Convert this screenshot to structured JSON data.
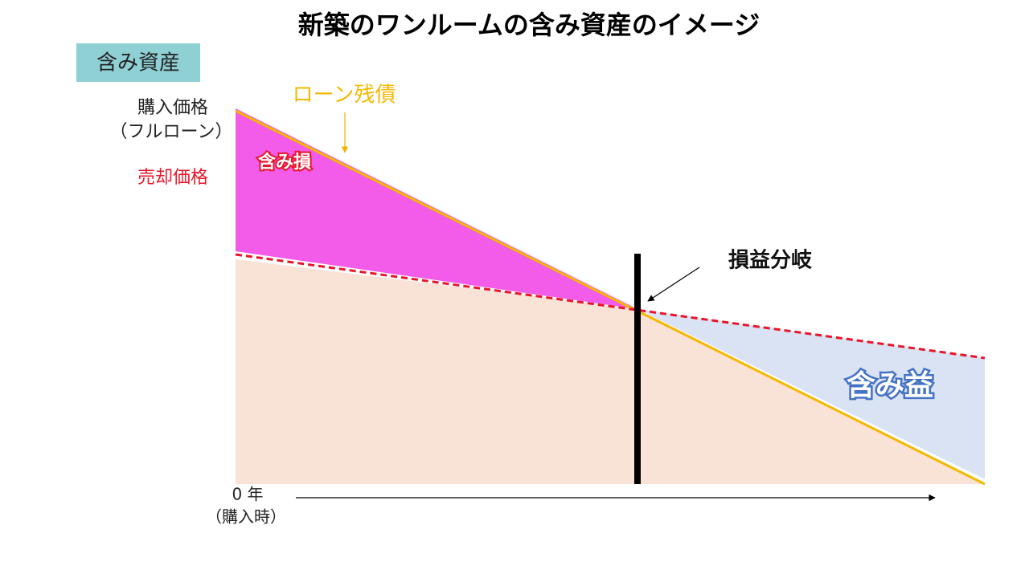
{
  "header": {
    "title": "新築のワンルームの含み資産のイメージ",
    "badge": "含み資産"
  },
  "labels": {
    "purchase_price": "購入価格",
    "full_loan": "（フルローン）",
    "sale_price": "売却価格",
    "loan_balance": "ローン残債",
    "unrealized_loss": "含み損",
    "break_even": "損益分岐",
    "unrealized_gain": "含み益",
    "year_zero": "0 年",
    "at_purchase": "（購入時）"
  }
}
